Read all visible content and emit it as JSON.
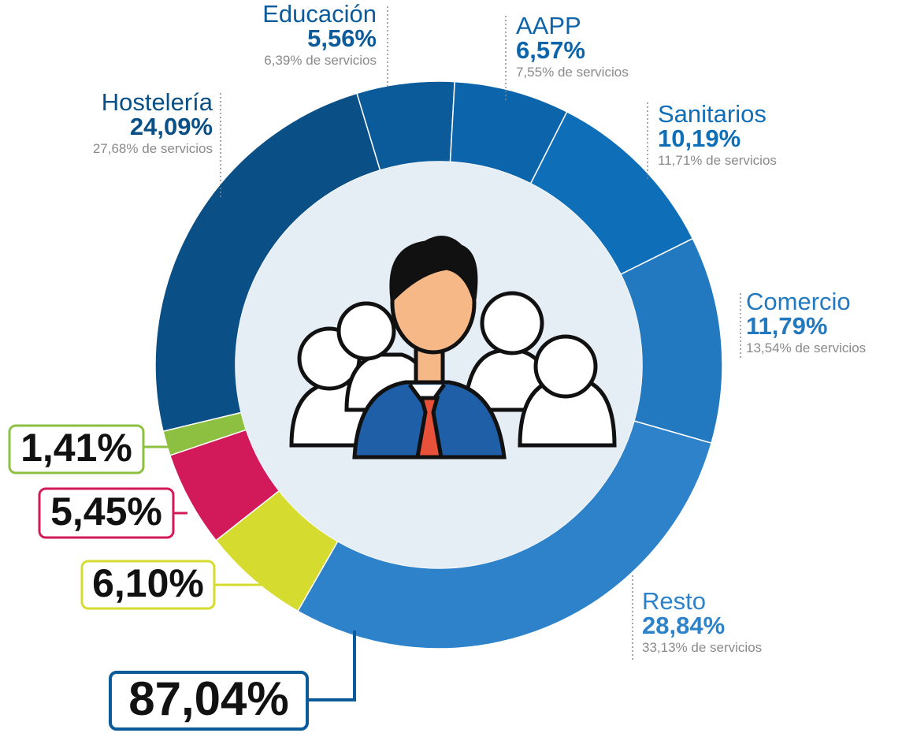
{
  "chart_data": {
    "type": "donut",
    "categories": [
      "Educación",
      "AAPP",
      "Sanitarios",
      "Comercio",
      "Resto",
      null,
      null,
      null,
      "Hostelería"
    ],
    "values": [
      5.56,
      6.57,
      10.19,
      11.79,
      28.84,
      6.1,
      5.45,
      1.41,
      24.09
    ],
    "value_labels": [
      "5,56%",
      "6,57%",
      "10,19%",
      "11,79%",
      "28,84%",
      "6,10%",
      "5,45%",
      "1,41%",
      "24,09%"
    ],
    "colors": [
      "#0b5b9b",
      "#0c64aa",
      "#0e6eb7",
      "#2279c0",
      "#2d82c9",
      "#d5dc2f",
      "#d21a5a",
      "#8dc041",
      "#0a4f86"
    ],
    "service_value_labels": [
      "6,39%",
      "7,55%",
      "11,71%",
      "13,54%",
      "33,13%",
      null,
      null,
      null,
      "27,68%"
    ],
    "service_suffix": "de servicios",
    "total": 87.04,
    "total_label": "87,04%"
  }
}
